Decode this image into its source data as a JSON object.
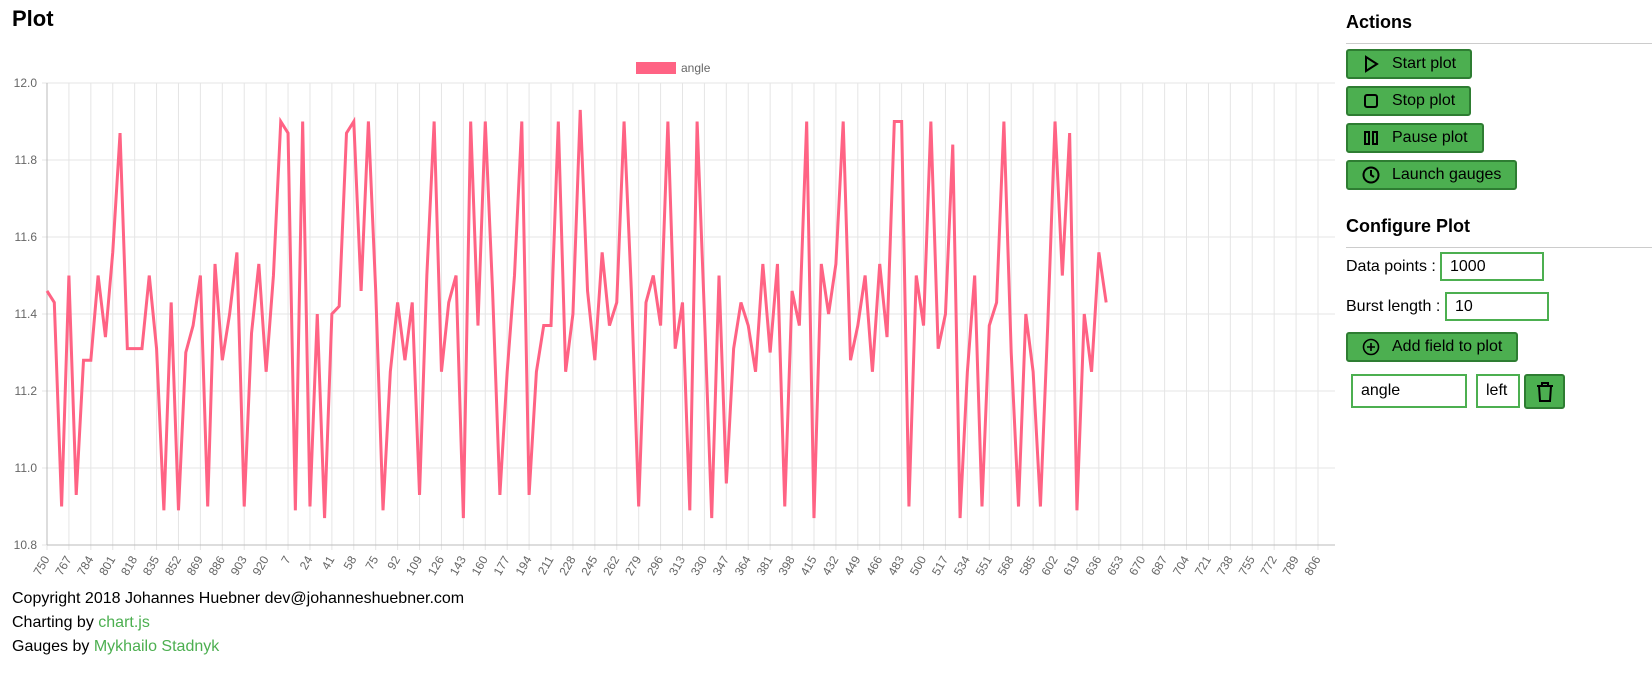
{
  "header": {
    "title": "Plot"
  },
  "chart_data": {
    "type": "line",
    "legend": "top",
    "grid": true,
    "ylim": [
      10.8,
      12.0
    ],
    "yticks": [
      10.8,
      {
        "value": 11,
        "label": "11.0"
      },
      11.2,
      11.4,
      11.6,
      11.8,
      {
        "value": 12,
        "label": "12.0"
      }
    ],
    "categories": [
      "750",
      null,
      null,
      "767",
      null,
      null,
      "784",
      null,
      null,
      "801",
      null,
      null,
      "818",
      null,
      null,
      "835",
      null,
      null,
      "852",
      null,
      null,
      "869",
      null,
      null,
      "886",
      null,
      null,
      "903",
      null,
      null,
      "920",
      null,
      null,
      "7",
      null,
      null,
      "24",
      null,
      null,
      "41",
      null,
      null,
      "58",
      null,
      null,
      "75",
      null,
      null,
      "92",
      null,
      null,
      "109",
      null,
      null,
      "126",
      null,
      null,
      "143",
      null,
      null,
      "160",
      null,
      null,
      "177",
      null,
      null,
      "194",
      null,
      null,
      "211",
      null,
      null,
      "228",
      null,
      null,
      "245",
      null,
      null,
      "262",
      null,
      null,
      "279",
      null,
      null,
      "296",
      null,
      null,
      "313",
      null,
      null,
      "330",
      null,
      null,
      "347",
      null,
      null,
      "364",
      null,
      null,
      "381",
      null,
      null,
      "398",
      null,
      null,
      "415",
      null,
      null,
      "432",
      null,
      null,
      "449",
      null,
      null,
      "466",
      null,
      null,
      "483",
      null,
      null,
      "500",
      null,
      null,
      "517",
      null,
      null,
      "534",
      null,
      null,
      "551",
      null,
      null,
      "568",
      null,
      null,
      "585",
      null,
      null,
      "602",
      null,
      null,
      "619",
      null,
      null,
      "636",
      null,
      null,
      "653",
      null,
      null,
      "670",
      null,
      null,
      "687",
      null,
      null,
      "704",
      null,
      null,
      "721",
      null,
      null,
      "738",
      null,
      null,
      "755",
      null,
      null,
      "772",
      null,
      null,
      "789",
      null,
      null,
      "806",
      null,
      null
    ],
    "series": [
      {
        "name": "angle",
        "color": "#ff6384",
        "values": [
          11.46,
          11.43,
          10.9,
          11.5,
          10.93,
          11.28,
          11.28,
          11.5,
          11.34,
          11.56,
          11.87,
          11.31,
          11.31,
          11.31,
          11.5,
          11.31,
          10.89,
          11.43,
          10.89,
          11.3,
          11.37,
          11.5,
          10.9,
          11.53,
          11.28,
          11.4,
          11.56,
          10.9,
          11.35,
          11.53,
          11.25,
          11.5,
          11.9,
          11.87,
          10.89,
          11.9,
          10.9,
          11.4,
          10.87,
          11.4,
          11.42,
          11.87,
          11.9,
          11.46,
          11.9,
          11.46,
          10.89,
          11.25,
          11.43,
          11.28,
          11.43,
          10.93,
          11.5,
          11.9,
          11.25,
          11.43,
          11.5,
          10.87,
          11.9,
          11.37,
          11.9,
          11.46,
          10.93,
          11.25,
          11.5,
          11.9,
          10.93,
          11.25,
          11.37,
          11.37,
          11.9,
          11.25,
          11.4,
          11.93,
          11.46,
          11.28,
          11.56,
          11.37,
          11.43,
          11.9,
          11.46,
          10.9,
          11.43,
          11.5,
          11.37,
          11.9,
          11.31,
          11.43,
          10.89,
          11.9,
          11.4,
          10.87,
          11.5,
          10.96,
          11.31,
          11.43,
          11.37,
          11.25,
          11.53,
          11.3,
          11.53,
          10.9,
          11.46,
          11.37,
          11.9,
          10.87,
          11.53,
          11.4,
          11.53,
          11.9,
          11.28,
          11.37,
          11.5,
          11.25,
          11.53,
          11.34,
          11.9,
          11.9,
          10.9,
          11.5,
          11.37,
          11.9,
          11.31,
          11.4,
          11.84,
          10.87,
          11.25,
          11.5,
          10.9,
          11.37,
          11.43,
          11.9,
          11.3,
          10.9,
          11.4,
          11.25,
          10.9,
          11.37,
          11.9,
          11.5,
          11.87,
          10.89,
          11.4,
          11.25,
          11.56,
          11.43,
          null,
          null,
          null,
          null,
          null,
          null,
          null,
          null,
          null,
          null,
          null,
          null,
          null,
          null,
          null,
          null,
          null,
          null,
          null,
          null,
          null,
          null,
          null,
          null,
          null,
          null,
          null,
          null,
          null,
          null,
          null
        ]
      }
    ]
  },
  "sidebar": {
    "actions_title": "Actions",
    "actions": [
      "Start plot",
      "Stop plot",
      "Pause plot",
      "Launch gauges"
    ],
    "configure_title": "Configure Plot",
    "data_points": {
      "label": "Data points :",
      "value": "1000"
    },
    "burst_length": {
      "label": "Burst length :",
      "value": "10"
    },
    "add_field": "Add field to plot",
    "field": {
      "name": "angle",
      "axis": "left"
    }
  },
  "footer": {
    "copyright": "Copyright 2018 Johannes Huebner dev@johanneshuebner.com",
    "charting_prefix": "Charting by",
    "charting_link": "chart.js",
    "gauges_prefix": "Gauges by",
    "gauges_link": "Mykhailo Stadnyk"
  }
}
